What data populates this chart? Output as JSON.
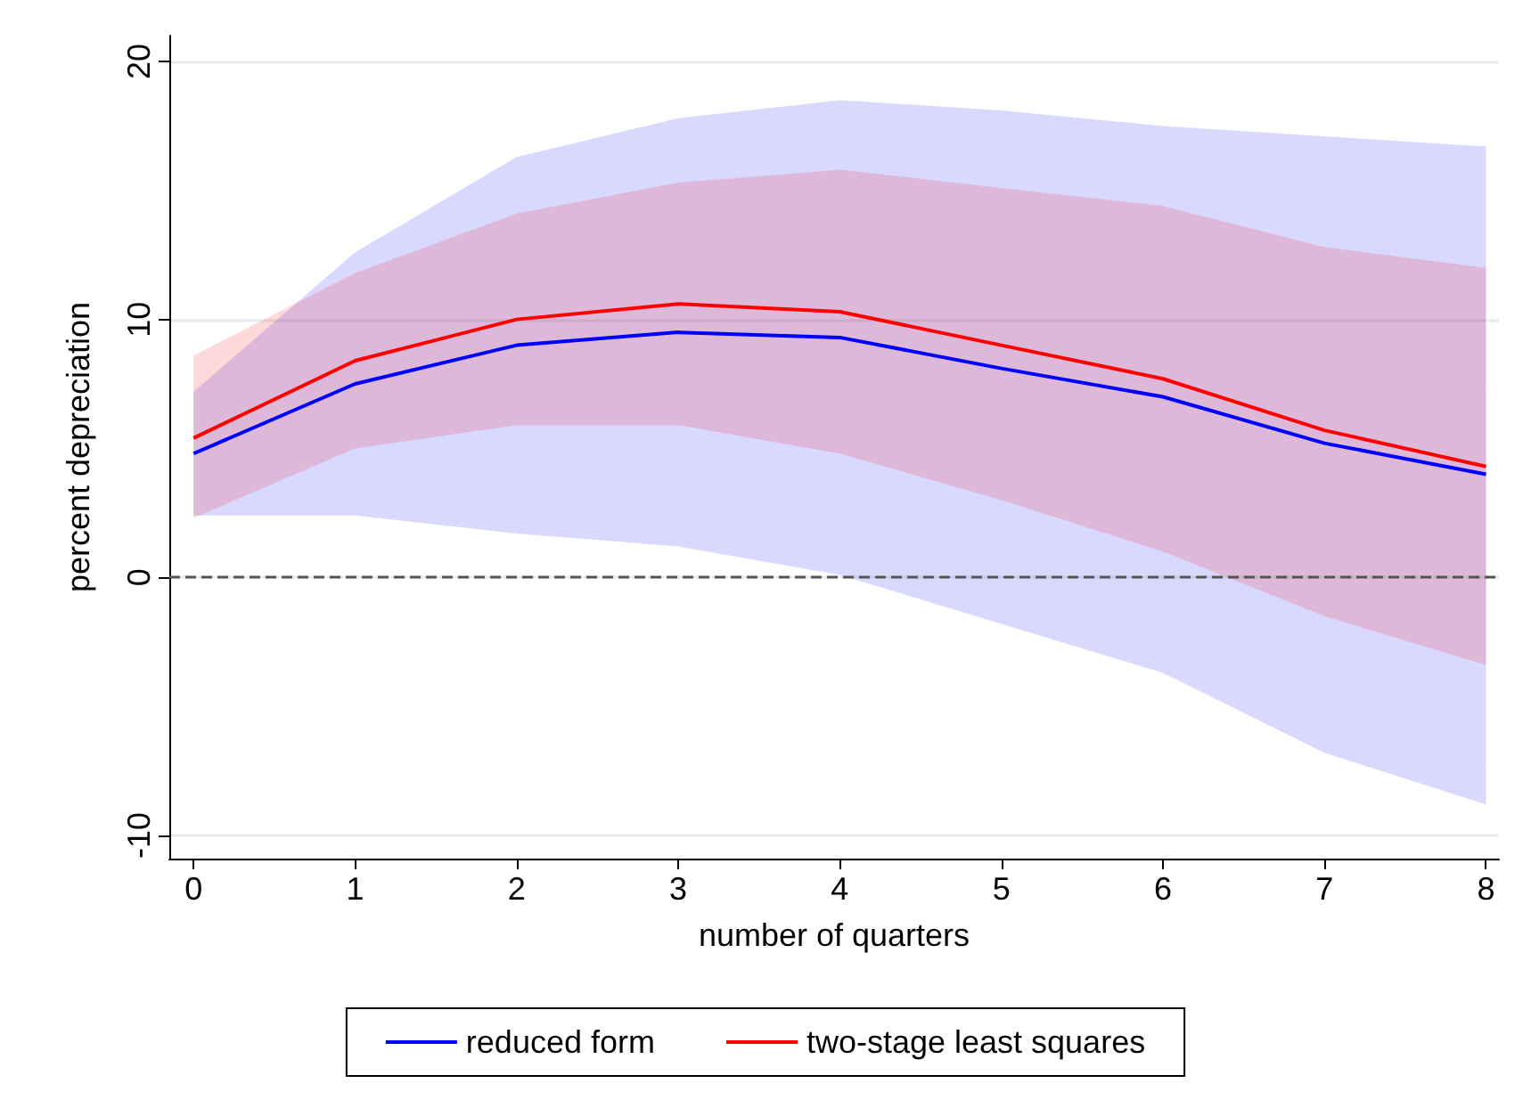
{
  "chart_data": {
    "type": "line",
    "xlabel": "number of quarters",
    "ylabel": "percent depreciation",
    "x": [
      0,
      1,
      2,
      3,
      4,
      5,
      6,
      7,
      8
    ],
    "series": [
      {
        "name": "reduced form",
        "color": "#0000ff",
        "values": [
          4.8,
          7.5,
          9.0,
          9.5,
          9.3,
          8.1,
          7.0,
          5.2,
          4.0
        ],
        "lower": [
          2.4,
          2.4,
          1.7,
          1.2,
          0.1,
          -1.8,
          -3.7,
          -6.8,
          -8.8
        ],
        "upper": [
          7.2,
          12.6,
          16.3,
          17.8,
          18.5,
          18.1,
          17.5,
          17.1,
          16.7
        ]
      },
      {
        "name": "two-stage least squares",
        "color": "#ff0000",
        "values": [
          5.4,
          8.4,
          10.0,
          10.6,
          10.3,
          9.0,
          7.7,
          5.7,
          4.3
        ],
        "lower": [
          2.3,
          5.0,
          5.9,
          5.9,
          4.8,
          3.0,
          1.0,
          -1.5,
          -3.4
        ],
        "upper": [
          8.6,
          11.8,
          14.1,
          15.3,
          15.8,
          15.1,
          14.4,
          12.8,
          12.0
        ]
      }
    ],
    "xlim": [
      -0.15,
      8.08
    ],
    "xticks": [
      0,
      1,
      2,
      3,
      4,
      5,
      6,
      7,
      8
    ],
    "ylim": [
      -10.9,
      21
    ],
    "yticks": [
      -10,
      0,
      10,
      20
    ],
    "ref_lines": [
      {
        "axis": "y",
        "value": 0,
        "color": "#555555",
        "line_style": "dashed"
      }
    ],
    "grid": "y",
    "legend": "bottom"
  }
}
